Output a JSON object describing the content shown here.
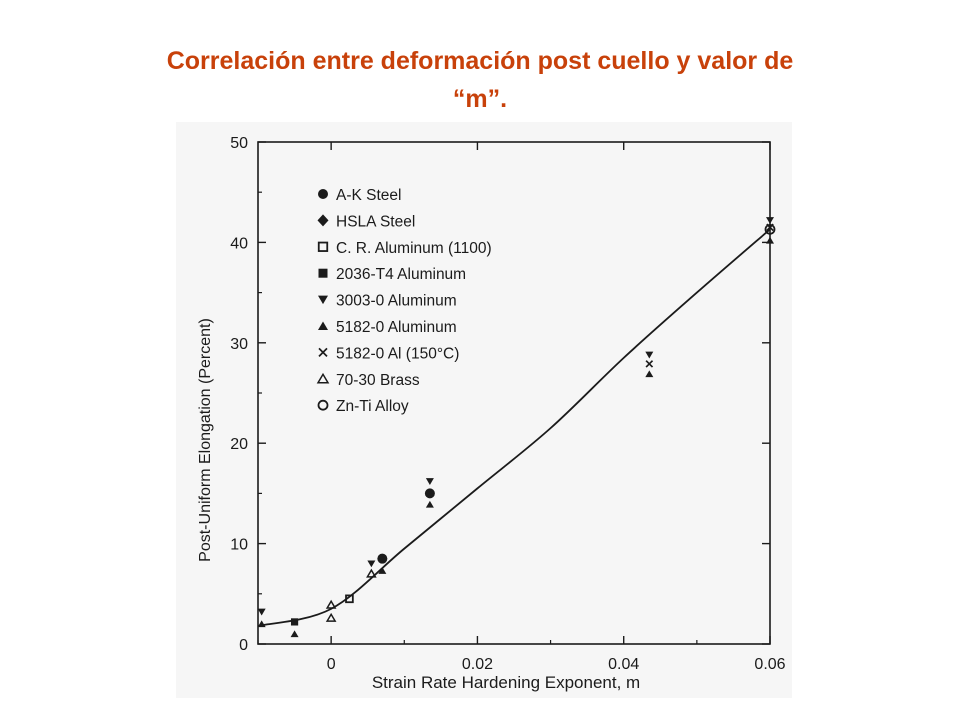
{
  "slide": {
    "title_line1": "Correlación entre deformación post cuello y valor de",
    "title_line2": "“m”."
  },
  "colors": {
    "title": "#c8410a",
    "ink": "#1b1b1b",
    "figure_background": "#f6f6f6"
  },
  "chart_data": {
    "type": "scatter",
    "title": "",
    "xlabel": "Strain Rate Hardening Exponent, m",
    "ylabel": "Post-Uniform Elongation (Percent)",
    "xlim": [
      -0.01,
      0.06
    ],
    "ylim": [
      0,
      50
    ],
    "x_ticks": [
      0,
      0.02,
      0.04,
      0.06
    ],
    "x_tick_labels": [
      "0",
      "0.02",
      "0.04",
      "0.06"
    ],
    "y_ticks": [
      0,
      10,
      20,
      30,
      40,
      50
    ],
    "y_tick_labels": [
      "0",
      "10",
      "20",
      "30",
      "40",
      "50"
    ],
    "grid": false,
    "legend_position": "top-left",
    "series": [
      {
        "name": "A-K Steel",
        "marker": "filled-circle",
        "points": [
          [
            0.007,
            8.5
          ],
          [
            0.0135,
            15
          ]
        ]
      },
      {
        "name": "HSLA Steel",
        "marker": "filled-diamond",
        "points": []
      },
      {
        "name": "C. R. Aluminum (1100)",
        "marker": "open-square",
        "points": [
          [
            0.0025,
            4.5
          ]
        ]
      },
      {
        "name": "2036-T4 Aluminum",
        "marker": "filled-square",
        "points": [
          [
            -0.005,
            2.2
          ]
        ]
      },
      {
        "name": "3003-0 Aluminum",
        "marker": "filled-triangle-down",
        "points": [
          [
            0.0055,
            8
          ],
          [
            0.0135,
            16.2
          ],
          [
            0.0435,
            28.8
          ],
          [
            0.06,
            42.2
          ],
          [
            -0.0095,
            3.2
          ]
        ]
      },
      {
        "name": "5182-0 Aluminum",
        "marker": "filled-triangle-up",
        "points": [
          [
            -0.0095,
            2
          ],
          [
            -0.005,
            1
          ],
          [
            0.007,
            7.3
          ],
          [
            0.0135,
            13.9
          ],
          [
            0.0435,
            26.9
          ],
          [
            0.06,
            40.2
          ]
        ]
      },
      {
        "name": "5182-0 Al (150°C)",
        "marker": "cross",
        "points": [
          [
            0.0435,
            27.9
          ],
          [
            0.06,
            41.5
          ]
        ]
      },
      {
        "name": "70-30 Brass",
        "marker": "open-triangle-up",
        "points": [
          [
            0,
            3.9
          ],
          [
            0.0055,
            7
          ],
          [
            0,
            2.6
          ]
        ]
      },
      {
        "name": "Zn-Ti Alloy",
        "marker": "open-circle",
        "points": [
          [
            0.06,
            41.3
          ]
        ]
      }
    ],
    "trend_line": [
      [
        -0.01,
        1.8
      ],
      [
        0,
        3.5
      ],
      [
        0.01,
        9.5
      ],
      [
        0.02,
        15.5
      ],
      [
        0.03,
        21.5
      ],
      [
        0.04,
        28.5
      ],
      [
        0.05,
        35
      ],
      [
        0.06,
        41.3
      ]
    ]
  }
}
